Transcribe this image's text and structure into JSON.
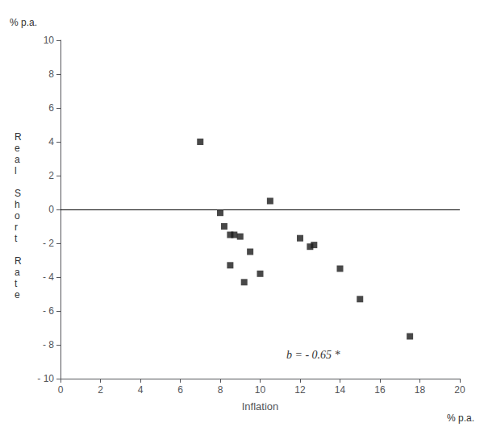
{
  "chart_data": {
    "type": "scatter",
    "x": [
      7.0,
      8.0,
      8.2,
      8.5,
      8.5,
      8.7,
      9.0,
      9.2,
      9.5,
      10.0,
      10.5,
      12.0,
      12.5,
      12.7,
      14.0,
      15.0,
      17.5
    ],
    "values": [
      4.0,
      -0.2,
      -1.0,
      -1.5,
      -3.3,
      -1.5,
      -1.6,
      -4.3,
      -2.5,
      -3.8,
      0.5,
      -1.7,
      -2.2,
      -2.1,
      -3.5,
      -5.3,
      -7.5
    ],
    "color": "#1a1a1a",
    "marker": "square",
    "xlabel": "Inflation",
    "ylabel": "Real Short Rate",
    "annotations": [
      {
        "text": "% p.a.",
        "axis": "y"
      },
      {
        "text": "% p.a.",
        "axis": "x"
      },
      {
        "text": "b = - 0.65 *"
      }
    ],
    "hlines": [
      0
    ],
    "xlim": [
      0,
      20
    ],
    "ylim": [
      -10,
      10
    ],
    "xticks": [
      0,
      2,
      4,
      6,
      8,
      10,
      12,
      14,
      16,
      18,
      20
    ],
    "yticks": [
      {
        "value": -10,
        "label": "- 10"
      },
      {
        "value": -8,
        "label": "- 8"
      },
      {
        "value": -6,
        "label": "- 6"
      },
      {
        "value": -4,
        "label": "- 4"
      },
      {
        "value": -2,
        "label": "- 2"
      },
      0,
      2,
      4,
      6,
      8,
      10
    ],
    "grid": false
  }
}
